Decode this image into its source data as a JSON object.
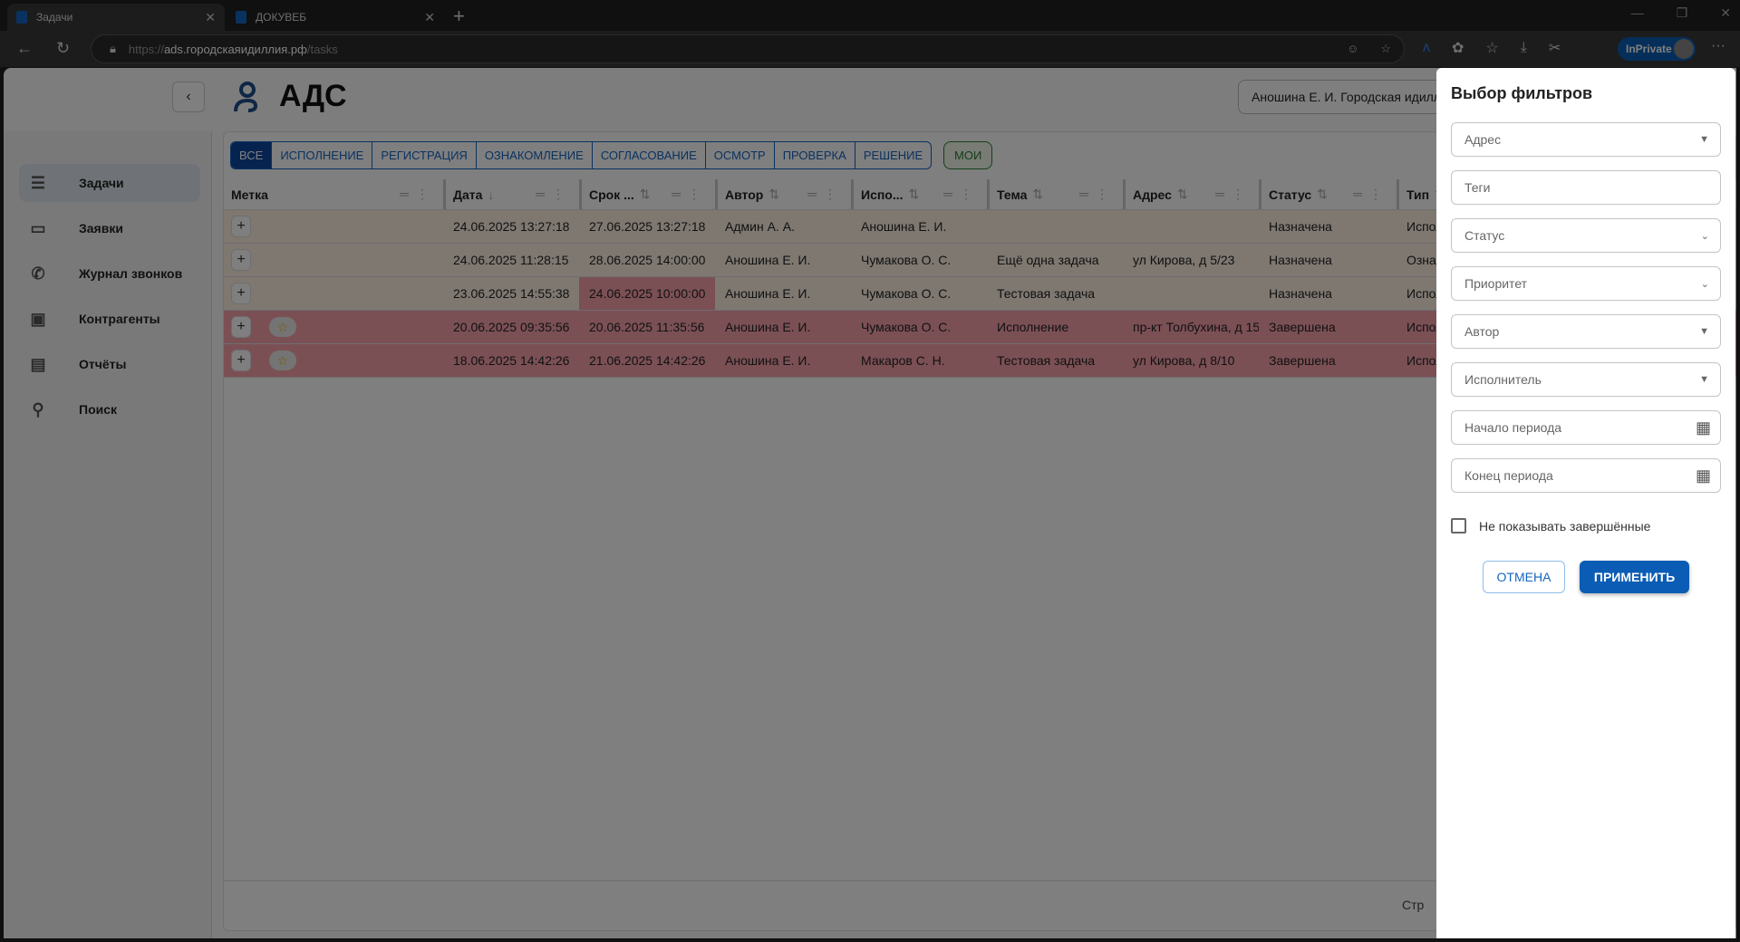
{
  "browser": {
    "tabs": [
      {
        "title": "Задачи"
      },
      {
        "title": "ДОКУВЕБ"
      }
    ],
    "url": {
      "scheme": "https://",
      "host": "ads.городскаяидиллия.рф",
      "path": "/tasks"
    },
    "inprivate_label": "InPrivate"
  },
  "header": {
    "title": "АДС",
    "user": "Аношина Е. И. Городская идиллия"
  },
  "sidebar": {
    "items": [
      {
        "label": "Задачи",
        "icon": "list-icon",
        "active": true
      },
      {
        "label": "Заявки",
        "icon": "chat-icon"
      },
      {
        "label": "Журнал звонков",
        "icon": "phone-forward-icon"
      },
      {
        "label": "Контрагенты",
        "icon": "contact-card-icon"
      },
      {
        "label": "Отчёты",
        "icon": "receipt-icon"
      },
      {
        "label": "Поиск",
        "icon": "search-icon"
      }
    ]
  },
  "filter_tabs": [
    "ВСЕ",
    "ИСПОЛНЕНИЕ",
    "РЕГИСТРАЦИЯ",
    "ОЗНАКОМЛЕНИЕ",
    "СОГЛАСОВАНИЕ",
    "ОСМОТР",
    "ПРОВЕРКА",
    "РЕШЕНИЕ"
  ],
  "mine_tab": "МОИ",
  "table": {
    "columns": [
      "Метка",
      "Дата",
      "Срок ...",
      "Автор",
      "Испо...",
      "Тема",
      "Адрес",
      "Статус",
      "Тип"
    ],
    "rows": [
      {
        "starred": false,
        "date": "24.06.2025 13:27:18",
        "deadline": "27.06.2025 13:27:18",
        "author": "Админ А. А.",
        "executor": "Аношина Е. И.",
        "topic": "",
        "address": "",
        "status": "Назначена",
        "type": "Исполнение",
        "color": "tan",
        "overdue": false
      },
      {
        "starred": false,
        "date": "24.06.2025 11:28:15",
        "deadline": "28.06.2025 14:00:00",
        "author": "Аношина Е. И.",
        "executor": "Чумакова О. С.",
        "topic": "Ещё одна задача",
        "address": "ул Кирова, д 5/23",
        "status": "Назначена",
        "type": "Ознакомление",
        "color": "tan",
        "overdue": false
      },
      {
        "starred": false,
        "date": "23.06.2025 14:55:38",
        "deadline": "24.06.2025 10:00:00",
        "author": "Аношина Е. И.",
        "executor": "Чумакова О. С.",
        "topic": "Тестовая задача",
        "address": "",
        "status": "Назначена",
        "type": "Исполнение",
        "color": "tan",
        "overdue": true
      },
      {
        "starred": true,
        "date": "20.06.2025 09:35:56",
        "deadline": "20.06.2025 11:35:56",
        "author": "Аношина Е. И.",
        "executor": "Чумакова О. С.",
        "topic": "Исполнение",
        "address": "пр-кт Толбухина, д 15",
        "status": "Завершена",
        "type": "Исполнение",
        "color": "red",
        "overdue": false
      },
      {
        "starred": true,
        "date": "18.06.2025 14:42:26",
        "deadline": "21.06.2025 14:42:26",
        "author": "Аношина Е. И.",
        "executor": "Макаров С. Н.",
        "topic": "Тестовая задача",
        "address": "ул Кирова, д 8/10",
        "status": "Завершена",
        "type": "Исполнение",
        "color": "red",
        "overdue": false
      }
    ]
  },
  "footer": {
    "pagination_label": "Стр"
  },
  "drawer": {
    "title": "Выбор фильтров",
    "fields": [
      {
        "placeholder": "Адрес",
        "kind": "autocomplete"
      },
      {
        "placeholder": "Теги",
        "kind": "text"
      },
      {
        "placeholder": "Статус",
        "kind": "select"
      },
      {
        "placeholder": "Приоритет",
        "kind": "select"
      },
      {
        "placeholder": "Автор",
        "kind": "autocomplete"
      },
      {
        "placeholder": "Исполнитель",
        "kind": "autocomplete"
      },
      {
        "placeholder": "Начало периода",
        "kind": "date"
      },
      {
        "placeholder": "Конец периода",
        "kind": "date"
      }
    ],
    "hide_completed": {
      "label": "Не показывать завершённые",
      "checked": false
    },
    "cancel": "ОТМЕНА",
    "apply": "ПРИМЕНИТЬ"
  },
  "colors": {
    "accent": "#0b5cb5",
    "row_in_progress": "#fdf0e2",
    "row_completed": "#f7a1aa",
    "mine": "#2e7d32"
  }
}
